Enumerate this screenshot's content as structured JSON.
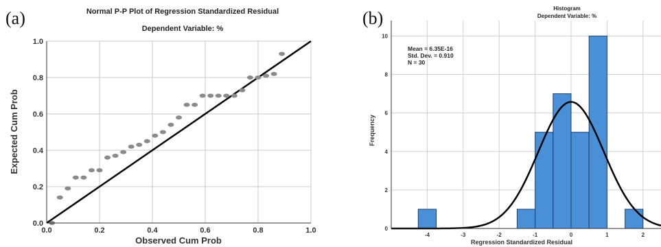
{
  "panel_labels": [
    "(a)",
    "(b)"
  ],
  "chart_data": [
    {
      "type": "scatter",
      "title": "Normal P-P Plot of Regression Standardized Residual",
      "subtitle": "Dependent Variable: %",
      "xlabel": "Observed Cum Prob",
      "ylabel": "Expected Cum Prob",
      "xlim": [
        0,
        1
      ],
      "ylim": [
        0,
        1
      ],
      "xticks": [
        "0.0",
        "0.2",
        "0.4",
        "0.6",
        "0.8",
        "1.0"
      ],
      "yticks": [
        "0.0",
        "0.2",
        "0.4",
        "0.6",
        "0.8",
        "1.0"
      ],
      "grid": true,
      "reference_line": [
        [
          0,
          0
        ],
        [
          1,
          1
        ]
      ],
      "points": [
        [
          0.02,
          0.0
        ],
        [
          0.05,
          0.14
        ],
        [
          0.08,
          0.19
        ],
        [
          0.11,
          0.25
        ],
        [
          0.14,
          0.25
        ],
        [
          0.17,
          0.29
        ],
        [
          0.2,
          0.29
        ],
        [
          0.23,
          0.36
        ],
        [
          0.26,
          0.37
        ],
        [
          0.29,
          0.39
        ],
        [
          0.32,
          0.42
        ],
        [
          0.35,
          0.43
        ],
        [
          0.38,
          0.45
        ],
        [
          0.41,
          0.48
        ],
        [
          0.44,
          0.5
        ],
        [
          0.47,
          0.54
        ],
        [
          0.5,
          0.58
        ],
        [
          0.53,
          0.65
        ],
        [
          0.56,
          0.65
        ],
        [
          0.59,
          0.7
        ],
        [
          0.62,
          0.7
        ],
        [
          0.65,
          0.7
        ],
        [
          0.68,
          0.7
        ],
        [
          0.71,
          0.7
        ],
        [
          0.74,
          0.73
        ],
        [
          0.77,
          0.8
        ],
        [
          0.8,
          0.8
        ],
        [
          0.83,
          0.81
        ],
        [
          0.86,
          0.82
        ],
        [
          0.89,
          0.93
        ]
      ]
    },
    {
      "type": "bar",
      "title": "Histogram",
      "subtitle": "Dependent Variable: %",
      "xlabel": "Regression Standardized Residual",
      "ylabel": "Frequency",
      "xlim": [
        -5,
        2.5
      ],
      "ylim": [
        0,
        10.8
      ],
      "xticks": [
        "-4",
        "-3",
        "-2",
        "-1",
        "0",
        "1",
        "2"
      ],
      "yticks": [
        "0",
        "2",
        "4",
        "6",
        "8",
        "10"
      ],
      "grid": true,
      "bin_width": 0.5,
      "bins": [
        {
          "x0": -4.25,
          "value": 1
        },
        {
          "x0": -1.5,
          "value": 1
        },
        {
          "x0": -1.0,
          "value": 5
        },
        {
          "x0": -0.5,
          "value": 7
        },
        {
          "x0": 0.0,
          "value": 5
        },
        {
          "x0": 0.5,
          "value": 10
        },
        {
          "x0": 1.5,
          "value": 1
        }
      ],
      "normal_curve": {
        "mean": 0.0,
        "sd": 0.91,
        "n": 30
      },
      "stats": [
        "Mean = 6.35E-16",
        "Std. Dev. = 0.910",
        "N = 30"
      ],
      "bar_color": "#4a90d9",
      "curve_color": "#000000"
    }
  ]
}
